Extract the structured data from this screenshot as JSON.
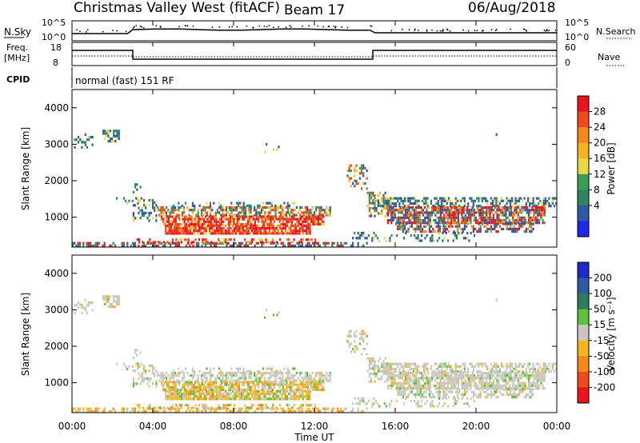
{
  "header": {
    "station_title": "Christmas Valley West (fitACF)",
    "beam_label": "Beam 17",
    "date_label": "06/Aug/2018"
  },
  "panels": {
    "nsky": {
      "label": "N.Sky",
      "left_ticks": [
        "10^5",
        "10^0"
      ],
      "right_ticks": [
        "10^5",
        "10^0"
      ],
      "right_label": "N.Search"
    },
    "freq": {
      "label_line1": "Freq.",
      "label_line2": "[MHz]",
      "left_ticks": [
        "18",
        "8"
      ],
      "right_ticks": [
        "60",
        "0"
      ],
      "right_label": "Nave"
    },
    "cpid": {
      "label": "CPID",
      "mode_text": "normal (fast) 151 RF"
    }
  },
  "power_colorbar": {
    "label": "Power [dB]",
    "ticks": [
      "28",
      "24",
      "20",
      "16",
      "12",
      "8",
      "4"
    ],
    "colors": [
      "#e8141e",
      "#f04a1a",
      "#f3891e",
      "#f5b521",
      "#e9d84a",
      "#3c9b55",
      "#2f8463",
      "#2d5aa0",
      "#1f28e6"
    ]
  },
  "velocity_colorbar": {
    "label": "Velocity [m s⁻¹]",
    "ticks": [
      "200",
      "100",
      "50",
      "15",
      "-15",
      "-50",
      "-100",
      "-200"
    ],
    "colors": [
      "#1f28c8",
      "#2d5aa0",
      "#2f7a60",
      "#5cc23a",
      "#c8c8c0",
      "#f5b521",
      "#f3891e",
      "#f04a1a",
      "#e8141e"
    ]
  },
  "chart_data": {
    "type": "heatmap",
    "xlabel": "Time UT",
    "x_ticks": [
      "00:00",
      "04:00",
      "08:00",
      "12:00",
      "16:00",
      "20:00",
      "00:00"
    ],
    "xlim_hours": [
      0,
      24
    ],
    "ylabel": "Slant Range [km]",
    "y_ticks": [
      1000,
      2000,
      3000,
      4000
    ],
    "ylim_km": [
      180,
      4500
    ],
    "series": [
      {
        "name": "Power",
        "unit": "dB",
        "range": [
          0,
          32
        ]
      },
      {
        "name": "Velocity",
        "unit": "m s⁻¹",
        "range": [
          -250,
          250
        ]
      }
    ]
  }
}
